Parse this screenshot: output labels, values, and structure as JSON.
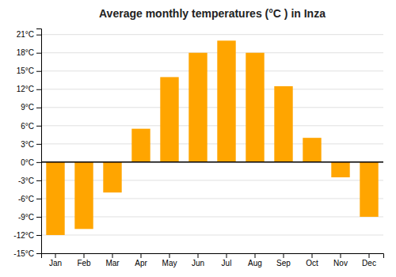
{
  "chart_data": {
    "type": "bar",
    "title": "Average monthly temperatures (°C ) in Inza",
    "categories": [
      "Jan",
      "Feb",
      "Mar",
      "Apr",
      "May",
      "Jun",
      "Jul",
      "Aug",
      "Sep",
      "Oct",
      "Nov",
      "Dec"
    ],
    "values": [
      -12,
      -11,
      -5,
      5.5,
      14,
      18,
      20,
      18,
      12.5,
      4,
      -2.5,
      -9
    ],
    "color": "#FFA500",
    "ylim": [
      -15,
      22
    ],
    "yticks": [
      {
        "value": -15,
        "label": "-15°C"
      },
      {
        "value": -12,
        "label": "-12°C"
      },
      {
        "value": -9,
        "label": "-9°C"
      },
      {
        "value": -6,
        "label": "-6°C"
      },
      {
        "value": -3,
        "label": "-3°C"
      },
      {
        "value": 0,
        "label": "0°C"
      },
      {
        "value": 3,
        "label": "3°C"
      },
      {
        "value": 6,
        "label": "6°C"
      },
      {
        "value": 9,
        "label": "9°C"
      },
      {
        "value": 12,
        "label": "12°C"
      },
      {
        "value": 15,
        "label": "15°C"
      },
      {
        "value": 18,
        "label": "18°C"
      },
      {
        "value": 21,
        "label": "21°C"
      }
    ],
    "grid": true
  }
}
